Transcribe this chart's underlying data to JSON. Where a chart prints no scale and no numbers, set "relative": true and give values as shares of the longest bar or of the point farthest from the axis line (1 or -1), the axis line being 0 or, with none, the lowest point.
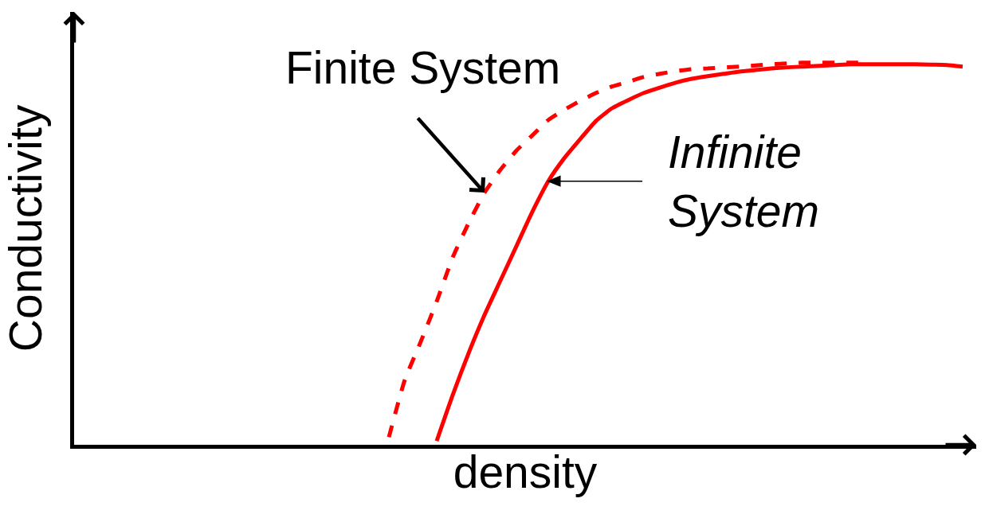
{
  "chart_data": {
    "type": "line",
    "xlabel": "density",
    "ylabel": "Conductivity",
    "relative": true,
    "categories": [
      null,
      null,
      null,
      null,
      null,
      null,
      null,
      null,
      null,
      null,
      null,
      null,
      null,
      null,
      null,
      null,
      null,
      null,
      null,
      null,
      null,
      null,
      null,
      null,
      null,
      null,
      null,
      null,
      null,
      null,
      null,
      null,
      null,
      null,
      null,
      null,
      null,
      null,
      null,
      null,
      null,
      null,
      null,
      null,
      null,
      null,
      null,
      null,
      null,
      null,
      null,
      null,
      null,
      null,
      null,
      null,
      null
    ],
    "series": [
      {
        "name": "Finite System",
        "color": "#ff0000",
        "line_style": "dashed",
        "values": [
          null,
          null,
          null,
          null,
          null,
          null,
          null,
          null,
          null,
          null,
          null,
          null,
          null,
          null,
          null,
          null,
          null,
          null,
          null,
          null,
          0.02,
          0.17,
          0.27,
          0.375,
          0.49,
          0.58,
          0.66,
          0.72,
          0.77,
          0.81,
          0.85,
          0.877,
          0.9,
          0.921,
          0.938,
          0.95,
          0.963,
          0.971,
          0.978,
          0.983,
          0.985,
          0.988,
          0.99,
          0.993,
          0.996,
          0.998,
          1.0,
          1.0,
          1.0,
          1.0,
          1.0,
          null,
          null,
          null,
          null,
          null,
          null
        ]
      },
      {
        "name": "Infinite System",
        "color": "#ff0000",
        "line_style": "solid",
        "values": [
          null,
          null,
          null,
          null,
          null,
          null,
          null,
          null,
          null,
          null,
          null,
          null,
          null,
          null,
          null,
          null,
          null,
          null,
          null,
          null,
          null,
          null,
          null,
          0.01,
          0.13,
          0.24,
          0.34,
          0.43,
          0.52,
          0.61,
          0.69,
          0.75,
          0.8,
          0.848,
          0.881,
          0.902,
          0.921,
          0.935,
          0.948,
          0.958,
          0.965,
          0.971,
          0.977,
          0.981,
          0.985,
          0.988,
          0.99,
          0.992,
          0.994,
          0.996,
          0.996,
          0.996,
          0.996,
          0.996,
          0.995,
          0.994,
          0.99
        ]
      }
    ]
  }
}
